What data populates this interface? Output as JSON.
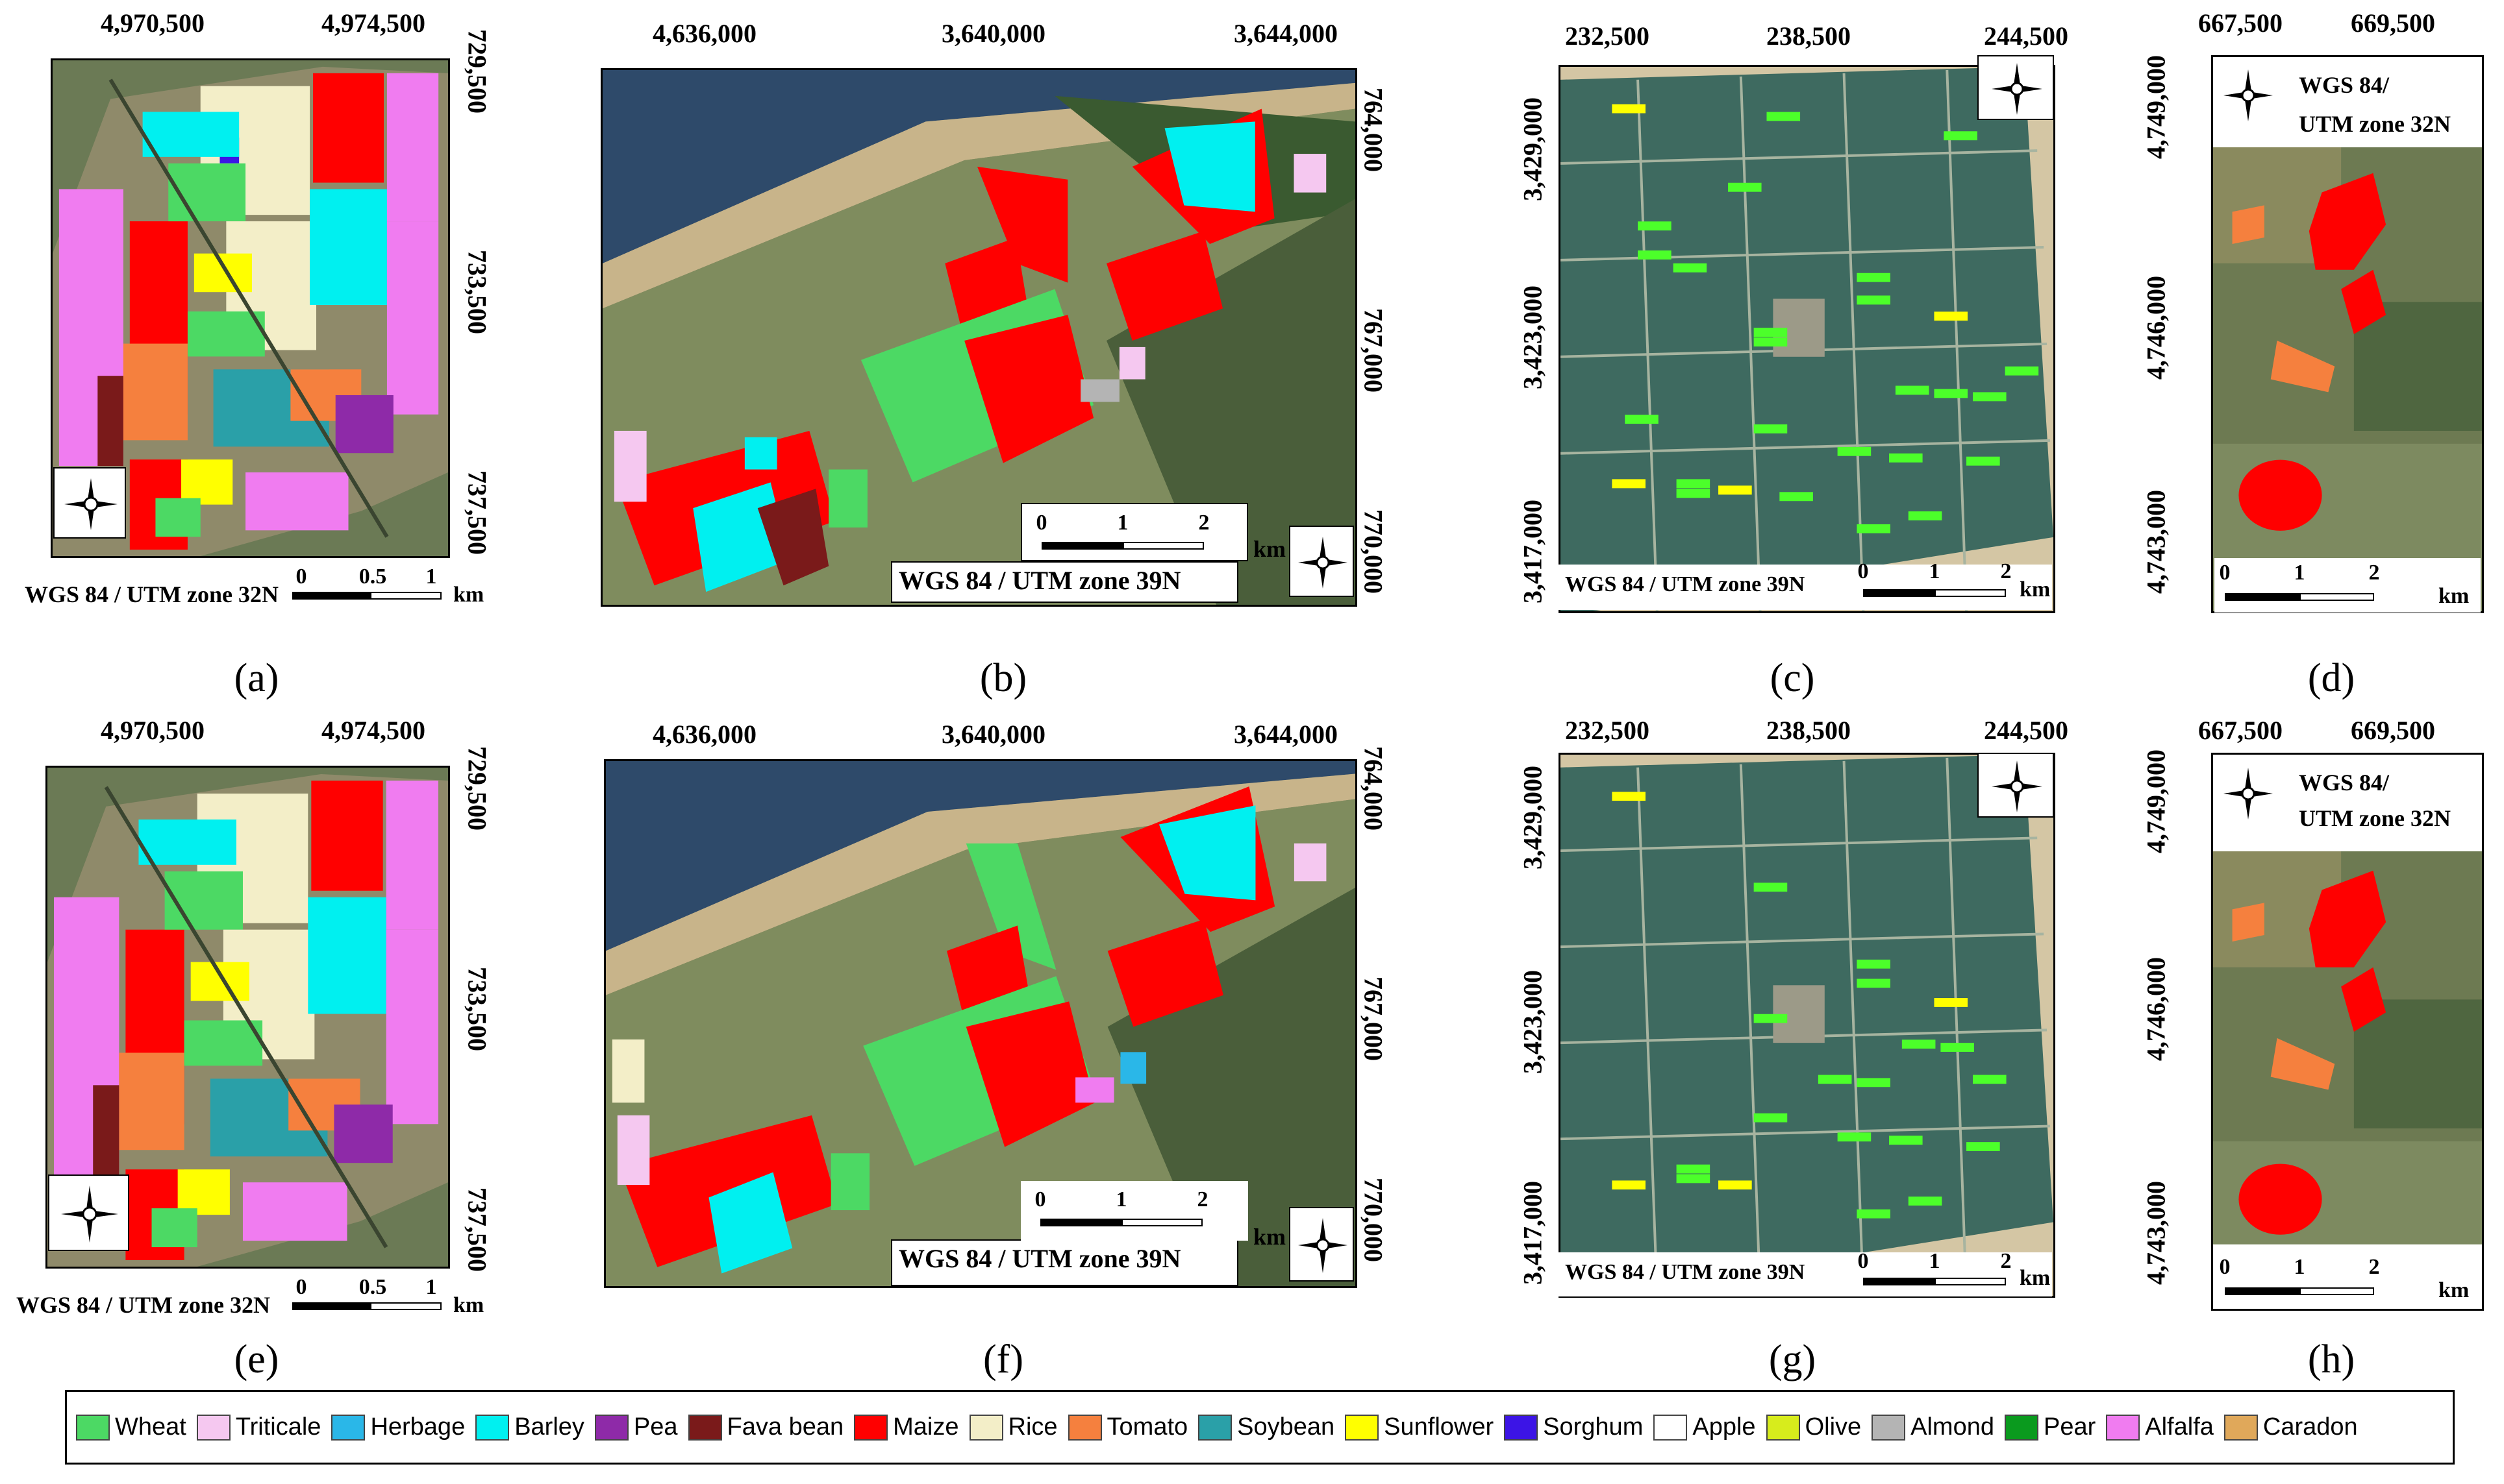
{
  "panels": {
    "a": {
      "label": "(a)",
      "top_ticks": [
        "4,970,500",
        "4,974,500"
      ],
      "side_ticks": [
        "729,500",
        "733,500",
        "737,500"
      ],
      "crs": "WGS 84 / UTM zone 32N",
      "scale": [
        "0",
        "0.5",
        "1"
      ],
      "unit": "km"
    },
    "b": {
      "label": "(b)",
      "top_ticks": [
        "4,636,000",
        "3,640,000",
        "3,644,000"
      ],
      "side_ticks": [
        "764,000",
        "767,000",
        "770,000"
      ],
      "crs": "WGS 84 / UTM zone 39N",
      "scale": [
        "0",
        "1",
        "2"
      ],
      "unit": "km"
    },
    "c": {
      "label": "(c)",
      "top_ticks": [
        "232,500",
        "238,500",
        "244,500"
      ],
      "side_ticks": [
        "3,429,000",
        "3,423,000",
        "3,417,000"
      ],
      "crs": "WGS 84 / UTM zone 39N",
      "scale": [
        "0",
        "1",
        "2"
      ],
      "unit": "km"
    },
    "d": {
      "label": "(d)",
      "top_ticks": [
        "667,500",
        "669,500"
      ],
      "side_ticks": [
        "4,749,000",
        "4,746,000",
        "4,743,000"
      ],
      "crs_line1": "WGS 84/",
      "crs_line2": "UTM zone 32N",
      "scale": [
        "0",
        "1",
        "2"
      ],
      "unit": "km"
    },
    "e": {
      "label": "(e)",
      "top_ticks": [
        "4,970,500",
        "4,974,500"
      ],
      "side_ticks": [
        "729,500",
        "733,500",
        "737,500"
      ],
      "crs": "WGS 84 / UTM zone 32N",
      "scale": [
        "0",
        "0.5",
        "1"
      ],
      "unit": "km"
    },
    "f": {
      "label": "(f)",
      "top_ticks": [
        "4,636,000",
        "3,640,000",
        "3,644,000"
      ],
      "side_ticks": [
        "764,000",
        "767,000",
        "770,000"
      ],
      "crs": "WGS 84 / UTM zone 39N",
      "scale": [
        "0",
        "1",
        "2"
      ],
      "unit": "km"
    },
    "g": {
      "label": "(g)",
      "top_ticks": [
        "232,500",
        "238,500",
        "244,500"
      ],
      "side_ticks": [
        "3,429,000",
        "3,423,000",
        "3,417,000"
      ],
      "crs": "WGS 84 / UTM zone 39N",
      "scale": [
        "0",
        "1",
        "2"
      ],
      "unit": "km"
    },
    "h": {
      "label": "(h)",
      "top_ticks": [
        "667,500",
        "669,500"
      ],
      "side_ticks": [
        "4,749,000",
        "4,746,000",
        "4,743,000"
      ],
      "crs_line1": "WGS 84/",
      "crs_line2": "UTM zone 32N",
      "scale": [
        "0",
        "1",
        "2"
      ],
      "unit": "km"
    }
  },
  "legend": [
    {
      "label": "Wheat",
      "color": "#4cd964"
    },
    {
      "label": "Triticale",
      "color": "#f5c8f0"
    },
    {
      "label": "Herbage",
      "color": "#2ab7e8"
    },
    {
      "label": "Barley",
      "color": "#00f0f0"
    },
    {
      "label": "Pea",
      "color": "#8e2aa8"
    },
    {
      "label": "Fava bean",
      "color": "#7a1a1a"
    },
    {
      "label": "Maize",
      "color": "#ff0000"
    },
    {
      "label": "Rice",
      "color": "#f3eec8"
    },
    {
      "label": "Tomato",
      "color": "#f5803e"
    },
    {
      "label": "Soybean",
      "color": "#2aa0a8"
    },
    {
      "label": "Sunflower",
      "color": "#ffff00"
    },
    {
      "label": "Sorghum",
      "color": "#3c14e6"
    },
    {
      "label": "Apple",
      "color": "#ffffff"
    },
    {
      "label": "Olive",
      "color": "#d7ec1c"
    },
    {
      "label": "Almond",
      "color": "#b4b4b4"
    },
    {
      "label": "Pear",
      "color": "#0a9a1e"
    },
    {
      "label": "Alfalfa",
      "color": "#f07cf0"
    },
    {
      "label": "Caradon",
      "color": "#e0a85a"
    }
  ]
}
